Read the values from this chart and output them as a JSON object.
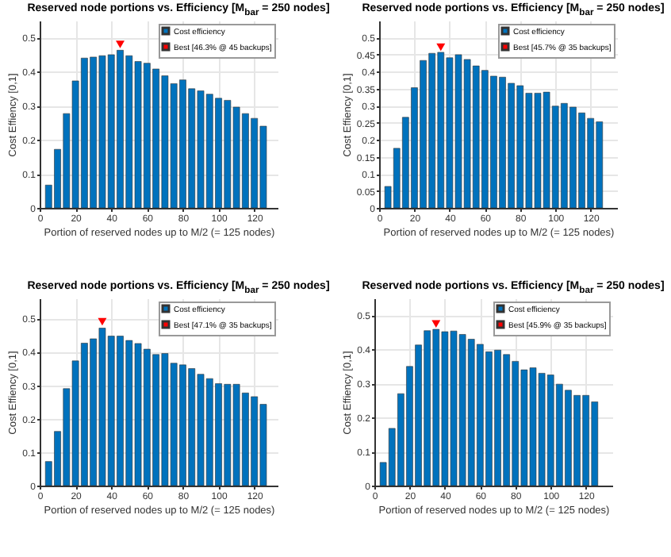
{
  "chart_data": [
    {
      "type": "bar",
      "title": "Reserved node portions vs. Efficiency [M$_{bar}$ = 250 nodes]",
      "xlabel": "Portion of reserved nodes up to M/2 (= 125 nodes)",
      "ylabel": "Cost Effiency [0,1]",
      "x": [
        5,
        10,
        15,
        20,
        25,
        30,
        35,
        40,
        45,
        50,
        55,
        60,
        65,
        70,
        75,
        80,
        85,
        90,
        95,
        100,
        105,
        110,
        115,
        120,
        125
      ],
      "series": [
        {
          "name": "Cost efficiency",
          "color": "#0072bd",
          "values": [
            0.067,
            0.172,
            0.277,
            0.373,
            0.44,
            0.443,
            0.447,
            0.45,
            0.463,
            0.447,
            0.43,
            0.425,
            0.408,
            0.388,
            0.365,
            0.376,
            0.35,
            0.344,
            0.334,
            0.322,
            0.316,
            0.296,
            0.277,
            0.263,
            0.24
          ]
        },
        {
          "name": "Best [46.3% @ 45 backups]",
          "type": "scatter",
          "marker": "triangle",
          "color": "#ff0000",
          "values": [
            null,
            null,
            null,
            null,
            null,
            null,
            null,
            null,
            0.48,
            null,
            null,
            null,
            null,
            null,
            null,
            null,
            null,
            null,
            null,
            null,
            null,
            null,
            null,
            null,
            null
          ]
        }
      ],
      "xlim": [
        0,
        133
      ],
      "xticks": [
        0,
        20,
        40,
        60,
        80,
        100,
        120
      ],
      "ylim": [
        0,
        0.55
      ],
      "yticks": [
        0,
        0.1,
        0.2,
        0.3,
        0.4,
        0.5
      ],
      "grid": true,
      "legend": "top right"
    },
    {
      "type": "bar",
      "title": "Reserved node portions vs. Efficiency [M$_{bar}$ = 250 nodes]",
      "xlabel": "Portion of reserved nodes up to M/2 (= 125 nodes)",
      "ylabel": "Cost Effiency [0,1]",
      "x": [
        5,
        10,
        15,
        20,
        25,
        30,
        35,
        40,
        45,
        50,
        55,
        60,
        65,
        70,
        75,
        80,
        85,
        90,
        95,
        100,
        105,
        110,
        115,
        120,
        125
      ],
      "series": [
        {
          "name": "Cost efficiency",
          "color": "#0072bd",
          "values": [
            0.063,
            0.175,
            0.266,
            0.353,
            0.433,
            0.454,
            0.457,
            0.441,
            0.45,
            0.436,
            0.417,
            0.404,
            0.387,
            0.384,
            0.366,
            0.359,
            0.337,
            0.337,
            0.34,
            0.299,
            0.307,
            0.296,
            0.279,
            0.263,
            0.253
          ]
        },
        {
          "name": "Best [45.7% @ 35 backups]",
          "type": "scatter",
          "marker": "triangle",
          "color": "#ff0000",
          "values": [
            null,
            null,
            null,
            null,
            null,
            null,
            0.472,
            null,
            null,
            null,
            null,
            null,
            null,
            null,
            null,
            null,
            null,
            null,
            null,
            null,
            null,
            null,
            null,
            null,
            null
          ]
        }
      ],
      "xlim": [
        0,
        135
      ],
      "xticks": [
        0,
        20,
        40,
        60,
        80,
        100,
        120
      ],
      "ylim": [
        0,
        0.55
      ],
      "yticks": [
        0,
        0.05,
        0.1,
        0.15,
        0.2,
        0.25,
        0.3,
        0.35,
        0.4,
        0.45,
        0.5
      ],
      "grid": true,
      "legend": "top right"
    },
    {
      "type": "bar",
      "title": "Reserved node portions vs. Efficiency [M$_{bar}$ = 250 nodes]",
      "xlabel": "Portion of reserved nodes up to M/2 (= 125 nodes)",
      "ylabel": "Cost Effiency [0,1]",
      "x": [
        5,
        10,
        15,
        20,
        25,
        30,
        35,
        40,
        45,
        50,
        55,
        60,
        65,
        70,
        75,
        80,
        85,
        90,
        95,
        100,
        105,
        110,
        115,
        120,
        125
      ],
      "series": [
        {
          "name": "Cost efficiency",
          "color": "#0072bd",
          "values": [
            0.072,
            0.162,
            0.29,
            0.373,
            0.426,
            0.439,
            0.471,
            0.447,
            0.447,
            0.434,
            0.425,
            0.408,
            0.392,
            0.395,
            0.366,
            0.361,
            0.35,
            0.333,
            0.32,
            0.305,
            0.303,
            0.303,
            0.277,
            0.266,
            0.243
          ]
        },
        {
          "name": "Best [47.1% @ 35 backups]",
          "type": "scatter",
          "marker": "triangle",
          "color": "#ff0000",
          "values": [
            null,
            null,
            null,
            null,
            null,
            null,
            0.49,
            null,
            null,
            null,
            null,
            null,
            null,
            null,
            null,
            null,
            null,
            null,
            null,
            null,
            null,
            null,
            null,
            null,
            null
          ]
        }
      ],
      "xlim": [
        0,
        133
      ],
      "xticks": [
        0,
        20,
        40,
        60,
        80,
        100,
        120
      ],
      "ylim": [
        0,
        0.56
      ],
      "yticks": [
        0,
        0.1,
        0.2,
        0.3,
        0.4,
        0.5
      ],
      "grid": true,
      "legend": "top right"
    },
    {
      "type": "bar",
      "title": "Reserved node portions vs. Efficiency [M$_{bar}$ = 250 nodes]",
      "xlabel": "Portion of reserved nodes up to M/2 (= 125 nodes)",
      "ylabel": "Cost Effiency [0,1]",
      "x": [
        5,
        10,
        15,
        20,
        25,
        30,
        35,
        40,
        45,
        50,
        55,
        60,
        65,
        70,
        75,
        80,
        85,
        90,
        95,
        100,
        105,
        110,
        115,
        120,
        125
      ],
      "series": [
        {
          "name": "Cost efficiency",
          "color": "#0072bd",
          "values": [
            0.068,
            0.168,
            0.27,
            0.35,
            0.413,
            0.455,
            0.459,
            0.452,
            0.454,
            0.444,
            0.43,
            0.415,
            0.393,
            0.398,
            0.385,
            0.365,
            0.34,
            0.346,
            0.33,
            0.325,
            0.298,
            0.28,
            0.265,
            0.265,
            0.246
          ]
        },
        {
          "name": "Best [45.9% @ 35 backups]",
          "type": "scatter",
          "marker": "triangle",
          "color": "#ff0000",
          "values": [
            null,
            null,
            null,
            null,
            null,
            null,
            0.475,
            null,
            null,
            null,
            null,
            null,
            null,
            null,
            null,
            null,
            null,
            null,
            null,
            null,
            null,
            null,
            null,
            null,
            null
          ]
        }
      ],
      "xlim": [
        0,
        135
      ],
      "xticks": [
        0,
        20,
        40,
        60,
        80,
        100,
        120
      ],
      "ylim": [
        0,
        0.55
      ],
      "yticks": [
        0,
        0.1,
        0.2,
        0.3,
        0.4,
        0.5
      ],
      "grid": true,
      "legend": "top right"
    }
  ]
}
